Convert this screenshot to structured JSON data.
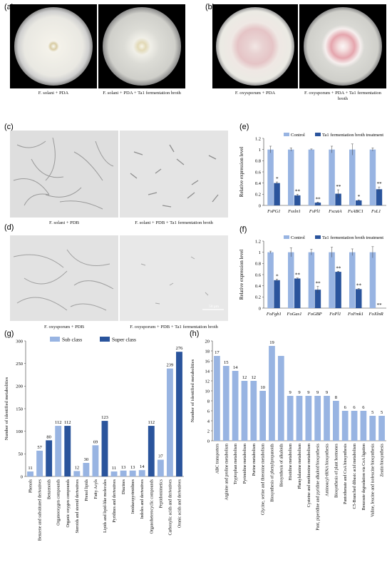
{
  "panels": {
    "a": {
      "label": "(a)",
      "captions": [
        "F. solani + PDA",
        "F. solani + PDA + Ta1 fermentation broth"
      ]
    },
    "b": {
      "label": "(b)",
      "captions": [
        "F. oxysporum + PDA",
        "F. oxysporum + PDA + Ta1 fermentation broth"
      ]
    },
    "c": {
      "label": "(c)",
      "captions": [
        "F. solani + PDB",
        "F. solani + PDB + Ta1 fermentation broth"
      ]
    },
    "d": {
      "label": "(d)",
      "captions": [
        "F. oxysporum + PDB",
        "F. oxysporum + PDB + Ta1 fermentation broth"
      ],
      "scalebar": "50 μm"
    },
    "e": {
      "label": "(e)"
    },
    "f": {
      "label": "(f)"
    },
    "g": {
      "label": "(g)"
    },
    "h": {
      "label": "(h)"
    }
  },
  "colors": {
    "light": "#98b4e2",
    "dark": "#2a549c",
    "plate_bg": "#000000"
  },
  "chart_data": [
    {
      "id": "e",
      "type": "bar",
      "ylabel": "Relative expression level",
      "ylim": [
        0,
        1.2
      ],
      "yticks": [
        "0",
        "0.2",
        "0.4",
        "0.6",
        "0.8",
        "1",
        "1.2"
      ],
      "legend_position": "top-right",
      "categories": [
        "FsPG1",
        "Fsxln1",
        "FsPl1",
        "FscutA",
        "FsABC1",
        "FsL1"
      ],
      "series": [
        {
          "name": "Control",
          "values": [
            1.0,
            1.0,
            1.0,
            1.0,
            1.0,
            1.0
          ],
          "errors": [
            0.06,
            0.03,
            0.01,
            0.06,
            0.1,
            0.03
          ]
        },
        {
          "name": "Ta1 fermentation broth treatment",
          "values": [
            0.4,
            0.18,
            0.05,
            0.21,
            0.09,
            0.29
          ],
          "errors": [
            0.02,
            0.02,
            0.01,
            0.07,
            0.01,
            0.04
          ]
        }
      ],
      "significance": [
        "*",
        "**",
        "**",
        "**",
        "*",
        "**"
      ]
    },
    {
      "id": "f",
      "type": "bar",
      "ylabel": "Relative expression level",
      "ylim": [
        0,
        1.2
      ],
      "yticks": [
        "0",
        "0.2",
        "0.4",
        "0.6",
        "0.8",
        "1",
        "1.2"
      ],
      "legend_position": "top-right",
      "categories": [
        "FoFgb1",
        "FoGas1",
        "FoGBP",
        "FoPl1",
        "FoFmk1",
        "FoXlnR"
      ],
      "series": [
        {
          "name": "Control",
          "values": [
            1.0,
            1.0,
            1.0,
            1.0,
            1.0,
            1.0
          ],
          "errors": [
            0.02,
            0.08,
            0.05,
            0.09,
            0.06,
            0.1
          ]
        },
        {
          "name": "Ta1 fermentation broth treatment",
          "values": [
            0.5,
            0.53,
            0.33,
            0.65,
            0.34,
            0.0
          ],
          "errors": [
            0.02,
            0.01,
            0.06,
            0.01,
            0.01,
            0.0
          ]
        }
      ],
      "significance": [
        "*",
        "**",
        "**",
        "**",
        "**",
        "**"
      ]
    },
    {
      "id": "g",
      "type": "bar",
      "ylabel": "Number of identified metabolities",
      "ylim": [
        0,
        300
      ],
      "yticks": [
        "0",
        "50",
        "100",
        "150",
        "200",
        "250",
        "300"
      ],
      "legend_position": "top-left",
      "legend": [
        "Sub class",
        "Super class"
      ],
      "categories": [
        "Phenols",
        "Benzene and substituted derivatives",
        "Benzenoids",
        "Organooxygen compounds",
        "Organic oxygen compounds",
        "Steroids and steroid derivatives",
        "Prenol lipids",
        "Fatty Acyls",
        "Lipids and lipid-like molecules",
        "Pyridines and derivatives",
        "Diazines",
        "Imidazopyrimidines",
        "Indoles and derivatives",
        "Organoheterocyclic compounds",
        "Peptidomimetics",
        "Carboxylic acids and derivatives",
        "Oranic acids and derivatives"
      ],
      "values": [
        11,
        57,
        80,
        112,
        112,
        12,
        30,
        69,
        123,
        11,
        13,
        13,
        14,
        112,
        37,
        239,
        276
      ],
      "value_labels": [
        "11",
        "57",
        "80",
        "112",
        "112",
        "12",
        "30",
        "69",
        "123",
        "11",
        "13",
        "13",
        "14",
        "112",
        "37",
        "239",
        "276"
      ],
      "class": [
        "sub",
        "sub",
        "super",
        "sub",
        "super",
        "sub",
        "sub",
        "sub",
        "super",
        "sub",
        "sub",
        "sub",
        "sub",
        "super",
        "sub",
        "sub",
        "super"
      ]
    },
    {
      "id": "h",
      "type": "bar",
      "ylabel": "Number of identified metabolities",
      "ylim": [
        0,
        20
      ],
      "yticks": [
        "0",
        "2",
        "4",
        "6",
        "8",
        "10",
        "12",
        "14",
        "16",
        "18",
        "20"
      ],
      "categories": [
        "ABC transporters",
        "Arginine and proline metabolism",
        "Tryptophan metabolism",
        "Pyrimidine metabolism",
        "Purine metabolism",
        "Glycine, serine and threonine metabolism",
        "Biosynthesis of phenylpropanoids",
        "Biosynthesis of alkaloids",
        "Histidine metabolism",
        "Phenylalanine metabolism",
        "Cysteine and methionine metabolism",
        "Pant, piperidine and pyridine alkaloid biosynthesis",
        "Aminoacyl-tRNA biosynthesis",
        "Biosynthesis of plant hormones",
        "Pantothenate and CoA biosynthesis",
        "C5-Branched dibasic acid metabolism",
        "Benzoate degradation via CoA ligation",
        "Valine, leucine and isoleucine biosynthesis",
        "Zeatin biosynthesis"
      ],
      "values": [
        17,
        15,
        14,
        12,
        12,
        10,
        19,
        17,
        9,
        9,
        9,
        9,
        9,
        8,
        6,
        6,
        6,
        5,
        5
      ],
      "value_labels": [
        "17",
        "15",
        "14",
        "12",
        "12",
        "10",
        "19",
        "",
        "9",
        "9",
        "9",
        "9",
        "9",
        "8",
        "6",
        "6",
        "6",
        "5",
        "5"
      ]
    }
  ]
}
